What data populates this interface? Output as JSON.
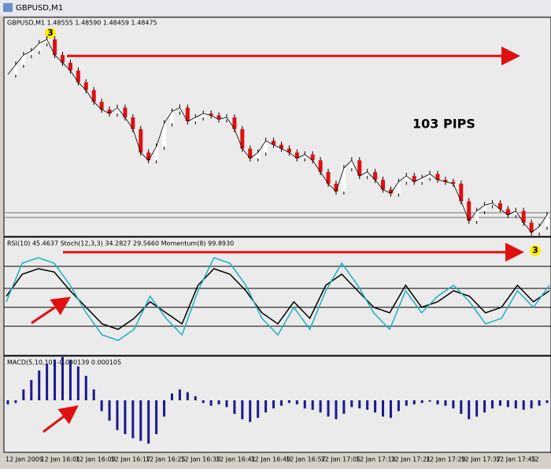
{
  "window": {
    "title": "GBPUSD,M1"
  },
  "main_panel": {
    "header": "GBPUSD,M1 1.48555 1.48590 1.48459 1.48475",
    "annotation": "103 PIPS",
    "marker_top": "3",
    "marker_bottom": "3",
    "closes": [
      1.484,
      1.4845,
      1.485,
      1.4852,
      1.4856,
      1.4858,
      1.485,
      1.4846,
      1.4842,
      1.4836,
      1.4832,
      1.4826,
      1.4822,
      1.482,
      1.4823,
      1.4818,
      1.4812,
      1.48,
      1.4796,
      1.4803,
      1.4815,
      1.4821,
      1.4823,
      1.4816,
      1.4818,
      1.482,
      1.4819,
      1.4817,
      1.4818,
      1.4812,
      1.4802,
      1.4797,
      1.48,
      1.4806,
      1.4804,
      1.4802,
      1.48,
      1.4797,
      1.4799,
      1.4796,
      1.479,
      1.4784,
      1.478,
      1.4792,
      1.4796,
      1.4788,
      1.479,
      1.4786,
      1.4781,
      1.4779,
      1.4785,
      1.4788,
      1.4785,
      1.4787,
      1.4789,
      1.4786,
      1.4785,
      1.4784,
      1.4775,
      1.4765,
      1.477,
      1.4773,
      1.4774,
      1.4771,
      1.4768,
      1.477,
      1.4764,
      1.4759,
      1.4762,
      1.4768
    ]
  },
  "oscillator_panel": {
    "header": "RSI(10) 45.4637 Stoch(12,3,3) 34.2827 29.5660 Momentum(8) 99.8930",
    "rsi": [
      50,
      70,
      75,
      72,
      55,
      40,
      25,
      20,
      30,
      45,
      35,
      25,
      60,
      75,
      70,
      55,
      35,
      25,
      45,
      30,
      60,
      70,
      55,
      40,
      35,
      60,
      40,
      45,
      55,
      50,
      35,
      40,
      60,
      45,
      55
    ],
    "stoch": [
      45,
      80,
      85,
      80,
      60,
      35,
      15,
      10,
      20,
      50,
      30,
      15,
      55,
      85,
      80,
      60,
      30,
      15,
      40,
      20,
      55,
      80,
      60,
      35,
      20,
      55,
      35,
      50,
      60,
      45,
      25,
      30,
      55,
      40,
      60
    ]
  },
  "macd_panel": {
    "header": "MACD(5,10,10) -0.000139 0.000105",
    "histogram": [
      -3e-05,
      -2e-05,
      8e-05,
      0.00015,
      0.00022,
      0.00027,
      0.0003,
      0.00032,
      0.0003,
      0.00025,
      0.00018,
      8e-05,
      -8e-05,
      -0.00015,
      -0.00022,
      -0.00025,
      -0.00028,
      -0.0003,
      -0.00032,
      -0.00025,
      -0.00012,
      5e-05,
      8e-05,
      6e-05,
      3e-05,
      -2e-05,
      -4e-05,
      -3e-05,
      -5e-05,
      -0.0001,
      -0.00014,
      -0.00016,
      -0.00013,
      -9e-05,
      -6e-05,
      -4e-05,
      -2e-05,
      -3e-05,
      -6e-05,
      -7e-05,
      -9e-05,
      -0.00012,
      -0.00014,
      -0.0001,
      -5e-05,
      -6e-05,
      -7e-05,
      -9e-05,
      -0.00012,
      -0.00013,
      -8e-05,
      -4e-05,
      -3e-05,
      -2e-05,
      -1e-05,
      -3e-05,
      -4e-05,
      -6e-05,
      -0.0001,
      -0.00014,
      -0.00012,
      -9e-05,
      -6e-05,
      -4e-05,
      -5e-05,
      -6e-05,
      -7e-05,
      -6e-05,
      -4e-05,
      -2e-05
    ]
  },
  "time_axis": [
    "12 Jan 2009",
    "12 Jan 16:01",
    "12 Jan 16:09",
    "12 Jan 16:17",
    "12 Jan 16:25",
    "12 Jan 16:33",
    "12 Jan 16:41",
    "12 Jan 16:49",
    "12 Jan 16:57",
    "12 Jan 17:05",
    "12 Jan 17:13",
    "12 Jan 17:21",
    "12 Jan 17:29",
    "12 Jan 17:37",
    "12 Jan 17:45",
    "12"
  ]
}
